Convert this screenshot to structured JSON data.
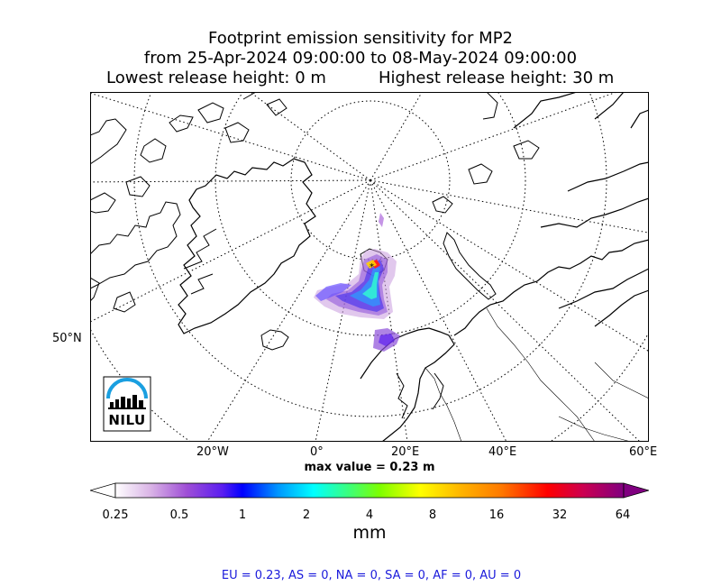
{
  "title": {
    "line1": "Footprint emission sensitivity for MP2",
    "line2": "from 25-Apr-2024 09:00:00 to 08-May-2024 09:00:00",
    "lowest": "Lowest release height: 0 m",
    "highest": "Highest release height: 30 m"
  },
  "map": {
    "lat_label": "50°N",
    "lon_labels": [
      "20°W",
      "0°",
      "20°E",
      "40°E",
      "60°E"
    ],
    "logo_text": "NILU",
    "max_value_text": "max value = 0.23 m"
  },
  "colorbar": {
    "ticks": [
      "0.25",
      "0.5",
      "1",
      "2",
      "4",
      "8",
      "16",
      "32",
      "64"
    ],
    "unit": "mm",
    "colors": [
      "#ffffff",
      "#d9b3e6",
      "#9f4fd6",
      "#5b1ef0",
      "#0000ff",
      "#0096ff",
      "#00ffff",
      "#3cff7a",
      "#7dff00",
      "#ffff00",
      "#ffb400",
      "#ff7800",
      "#ff0000",
      "#cc0050",
      "#800080"
    ]
  },
  "footer": "EU = 0.23,  AS = 0,  NA = 0,  SA = 0,  AF = 0,  AU = 0"
}
